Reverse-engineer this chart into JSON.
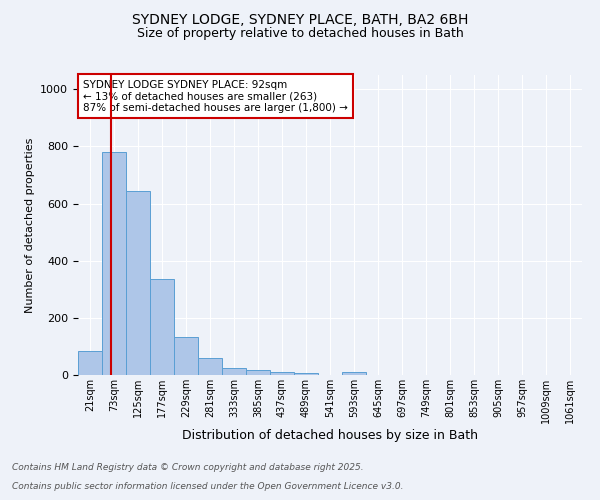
{
  "title_line1": "SYDNEY LODGE, SYDNEY PLACE, BATH, BA2 6BH",
  "title_line2": "Size of property relative to detached houses in Bath",
  "xlabel": "Distribution of detached houses by size in Bath",
  "ylabel": "Number of detached properties",
  "bin_labels": [
    "21sqm",
    "73sqm",
    "125sqm",
    "177sqm",
    "229sqm",
    "281sqm",
    "333sqm",
    "385sqm",
    "437sqm",
    "489sqm",
    "541sqm",
    "593sqm",
    "645sqm",
    "697sqm",
    "749sqm",
    "801sqm",
    "853sqm",
    "905sqm",
    "957sqm",
    "1009sqm",
    "1061sqm"
  ],
  "bar_values": [
    83,
    780,
    645,
    335,
    132,
    58,
    25,
    18,
    9,
    6,
    0,
    9,
    0,
    0,
    0,
    0,
    0,
    0,
    0,
    0,
    0
  ],
  "bar_color": "#aec6e8",
  "bar_edge_color": "#5a9fd4",
  "annotation_line1": "SYDNEY LODGE SYDNEY PLACE: 92sqm",
  "annotation_line2": "← 13% of detached houses are smaller (263)",
  "annotation_line3": "87% of semi-detached houses are larger (1,800) →",
  "annotation_box_color": "#cc0000",
  "ylim": [
    0,
    1050
  ],
  "footnote1": "Contains HM Land Registry data © Crown copyright and database right 2025.",
  "footnote2": "Contains public sector information licensed under the Open Government Licence v3.0.",
  "background_color": "#eef2f9",
  "grid_color": "#ffffff",
  "red_line_color": "#cc0000"
}
